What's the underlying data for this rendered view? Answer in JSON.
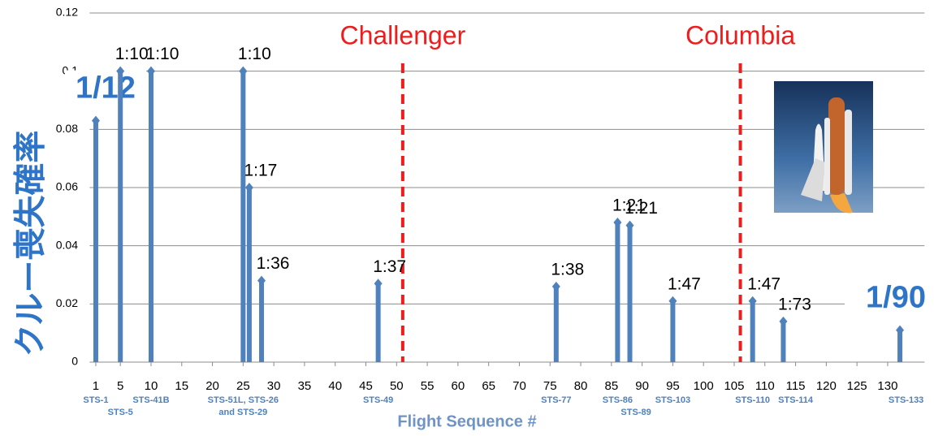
{
  "chart_data": {
    "type": "stem",
    "y_label": "クルー喪失確率",
    "x_label": "Flight Sequence #",
    "xlim": [
      0,
      136
    ],
    "xticks": [
      1,
      5,
      10,
      15,
      20,
      25,
      30,
      35,
      40,
      45,
      50,
      55,
      60,
      65,
      70,
      75,
      80,
      85,
      90,
      95,
      100,
      105,
      110,
      115,
      120,
      125,
      130
    ],
    "ylim": [
      0,
      0.12
    ],
    "yticks": [
      0,
      0.02,
      0.04,
      0.06,
      0.08,
      0.1,
      0.12
    ],
    "grid": true,
    "color": "#4f81bd",
    "x": [
      1,
      5,
      10,
      25,
      26,
      28,
      47,
      76,
      86,
      88,
      95,
      108,
      113,
      132
    ],
    "values": [
      0.083,
      0.1,
      0.1,
      0.1,
      0.06,
      0.028,
      0.027,
      0.026,
      0.048,
      0.047,
      0.021,
      0.021,
      0.014,
      0.011
    ],
    "value_labels": [
      "1/12",
      "1:10",
      "1:10",
      "1:10",
      "1:17",
      "1:36",
      "1:37",
      "1:38",
      "1:21",
      "1:21",
      "1:47",
      "1:47",
      "1:73",
      "1/90"
    ],
    "events": [
      {
        "x": 51,
        "label": "Challenger"
      },
      {
        "x": 106,
        "label": "Columbia"
      }
    ],
    "mission_labels": [
      {
        "x": 1,
        "text": "STS-1"
      },
      {
        "x": 5,
        "text": "STS-5"
      },
      {
        "x": 10,
        "text": "STS-41B"
      },
      {
        "x": 25,
        "text": "STS-51L, STS-26"
      },
      {
        "x": 25,
        "text": "and STS-29"
      },
      {
        "x": 47,
        "text": "STS-49"
      },
      {
        "x": 76,
        "text": "STS-77"
      },
      {
        "x": 86,
        "text": "STS-86"
      },
      {
        "x": 89,
        "text": "STS-89"
      },
      {
        "x": 95,
        "text": "STS-103"
      },
      {
        "x": 108,
        "text": "STS-110"
      },
      {
        "x": 115,
        "text": "STS-114"
      },
      {
        "x": 133,
        "text": "STS-133"
      }
    ]
  }
}
